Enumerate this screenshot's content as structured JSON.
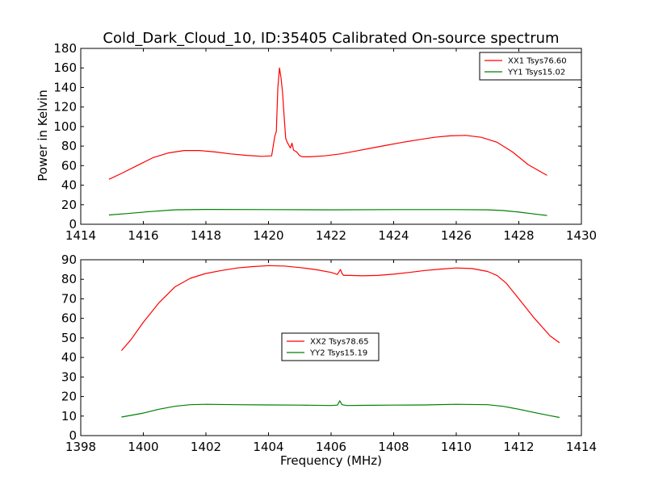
{
  "chart_data": [
    {
      "type": "line",
      "title": "Cold_Dark_Cloud_10, ID:35405 Calibrated On-source spectrum",
      "xlabel": "",
      "ylabel": "Power in Kelvin",
      "xlim": [
        1414,
        1430
      ],
      "ylim": [
        0,
        180
      ],
      "xticks": [
        1414,
        1416,
        1418,
        1420,
        1422,
        1424,
        1426,
        1428,
        1430
      ],
      "yticks": [
        0,
        20,
        40,
        60,
        80,
        100,
        120,
        140,
        160,
        180
      ],
      "grid": false,
      "legend_position": "upper-right",
      "series": [
        {
          "name": "XX1 Tsys76.60",
          "color": "#ff0000",
          "x": [
            1414.9,
            1415.3,
            1415.8,
            1416.3,
            1416.8,
            1417.3,
            1417.8,
            1418.3,
            1418.8,
            1419.3,
            1419.8,
            1420.1,
            1420.2,
            1420.25,
            1420.3,
            1420.35,
            1420.4,
            1420.45,
            1420.5,
            1420.55,
            1420.6,
            1420.7,
            1420.75,
            1420.8,
            1420.9,
            1421.0,
            1421.1,
            1421.3,
            1421.8,
            1422.3,
            1422.8,
            1423.3,
            1423.8,
            1424.3,
            1424.8,
            1425.3,
            1425.8,
            1426.3,
            1426.8,
            1427.3,
            1427.8,
            1428.3,
            1428.9
          ],
          "y": [
            46,
            52,
            60,
            68,
            73,
            75.5,
            75.5,
            74,
            72,
            70.5,
            69.5,
            70,
            90,
            95,
            140,
            160,
            150,
            135,
            110,
            88,
            84,
            78,
            83,
            76,
            74,
            70,
            69,
            69,
            70,
            72,
            75,
            78,
            81,
            84,
            86.5,
            89,
            90.5,
            91,
            89,
            84,
            74,
            61,
            50
          ]
        },
        {
          "name": "YY1 Tsys15.02",
          "color": "#008000",
          "x": [
            1414.9,
            1415.5,
            1416.2,
            1417.0,
            1418.0,
            1420.0,
            1422.0,
            1424.0,
            1426.0,
            1427.0,
            1427.5,
            1428.0,
            1428.5,
            1428.9
          ],
          "y": [
            9.5,
            11,
            13,
            14.8,
            15.2,
            15,
            14.8,
            15,
            15,
            14.8,
            14,
            12.5,
            10.5,
            9
          ]
        }
      ]
    },
    {
      "type": "line",
      "title": "",
      "xlabel": "Frequency (MHz)",
      "ylabel": "",
      "xlim": [
        1398,
        1414
      ],
      "ylim": [
        0,
        90
      ],
      "xticks": [
        1398,
        1400,
        1402,
        1404,
        1406,
        1408,
        1410,
        1412,
        1414
      ],
      "yticks": [
        0,
        10,
        20,
        30,
        40,
        50,
        60,
        70,
        80,
        90
      ],
      "grid": false,
      "legend_position": "center",
      "series": [
        {
          "name": "XX2 Tsys78.65",
          "color": "#ff0000",
          "x": [
            1399.3,
            1399.6,
            1400.0,
            1400.5,
            1401.0,
            1401.5,
            1402.0,
            1402.5,
            1403.0,
            1403.5,
            1404.0,
            1404.5,
            1405.0,
            1405.5,
            1406.0,
            1406.2,
            1406.3,
            1406.35,
            1406.4,
            1406.6,
            1407.0,
            1407.5,
            1408.0,
            1408.5,
            1409.0,
            1409.5,
            1410.0,
            1410.5,
            1411.0,
            1411.3,
            1411.6,
            1412.0,
            1412.5,
            1413.0,
            1413.3
          ],
          "y": [
            43.5,
            49,
            58,
            68,
            76,
            80.5,
            83,
            84.5,
            85.8,
            86.5,
            87,
            86.8,
            86,
            85,
            83.5,
            82.5,
            85,
            83,
            82,
            82,
            81.8,
            82,
            82.6,
            83.5,
            84.5,
            85.2,
            85.8,
            85.5,
            84,
            82,
            78,
            70,
            60,
            51,
            47.5
          ]
        },
        {
          "name": "YY2 Tsys15.19",
          "color": "#008000",
          "x": [
            1399.3,
            1400.0,
            1400.5,
            1401.0,
            1401.5,
            1402.0,
            1403.0,
            1404.0,
            1405.0,
            1406.0,
            1406.2,
            1406.28,
            1406.35,
            1406.5,
            1407.0,
            1408.0,
            1409.0,
            1410.0,
            1411.0,
            1411.5,
            1412.0,
            1412.5,
            1413.0,
            1413.3
          ],
          "y": [
            9.5,
            11.5,
            13.5,
            15,
            15.8,
            16,
            15.8,
            15.7,
            15.6,
            15.4,
            15.6,
            17.8,
            15.8,
            15.4,
            15.5,
            15.6,
            15.7,
            16,
            15.8,
            15,
            13.5,
            11.8,
            10.2,
            9.3
          ]
        }
      ]
    }
  ]
}
